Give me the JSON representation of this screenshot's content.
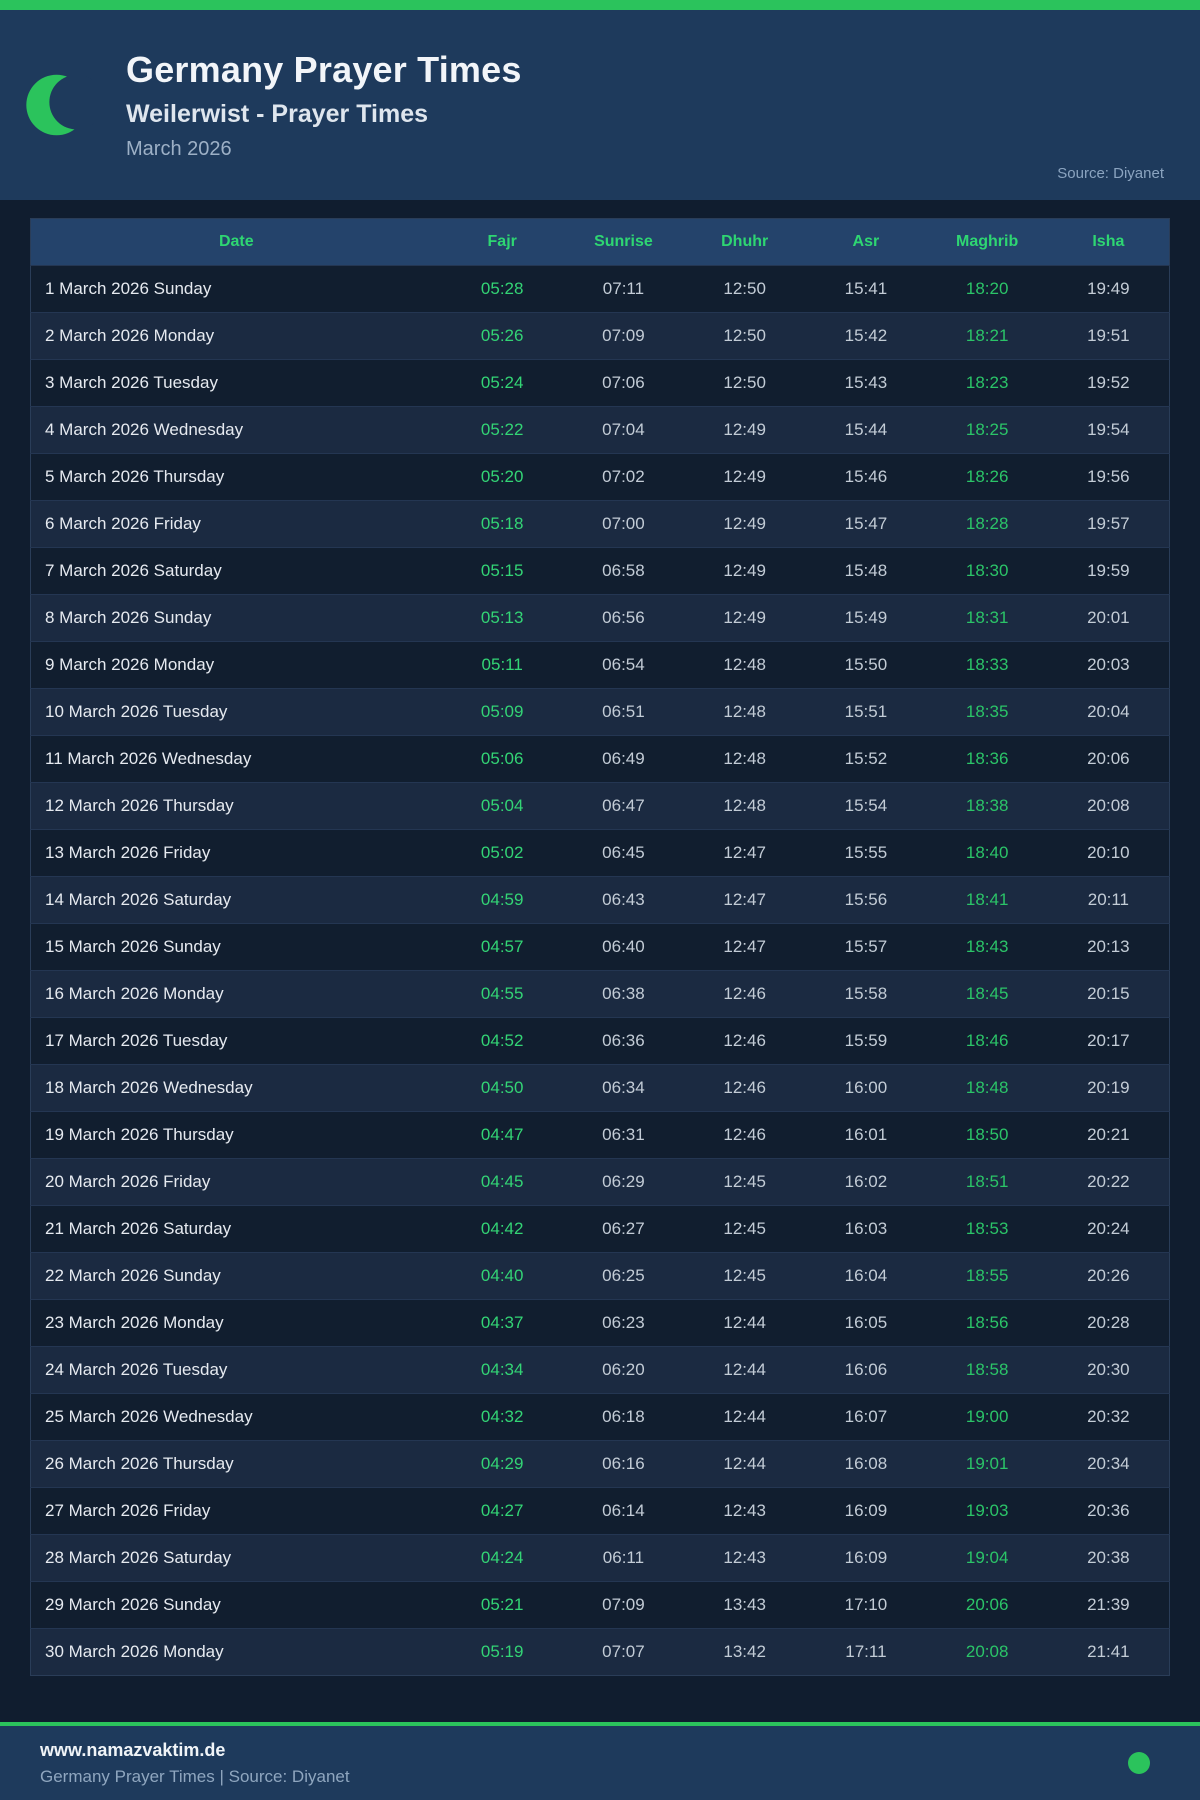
{
  "colors": {
    "accent-green": "#2bc35c",
    "green-text": "#2ed672",
    "fajr-green": "#33d475",
    "maghrib-green": "#2bc468",
    "header-bg": "#1e3a5c",
    "page-bg": "#101d2f",
    "table-header-bg": "#24436b",
    "row-odd": "#111e2f",
    "row-even": "#1b2a41",
    "footer-bg": "#1e3a5c"
  },
  "header": {
    "title": "Germany Prayer Times",
    "subtitle": "Weilerwist - Prayer Times",
    "month": "March 2026",
    "source": "Source: Diyanet"
  },
  "table": {
    "columns": [
      "Date",
      "Fajr",
      "Sunrise",
      "Dhuhr",
      "Asr",
      "Maghrib",
      "Isha"
    ],
    "rows": [
      {
        "date": "1 March 2026 Sunday",
        "fajr": "05:28",
        "sunrise": "07:11",
        "dhuhr": "12:50",
        "asr": "15:41",
        "maghrib": "18:20",
        "isha": "19:49"
      },
      {
        "date": "2 March 2026 Monday",
        "fajr": "05:26",
        "sunrise": "07:09",
        "dhuhr": "12:50",
        "asr": "15:42",
        "maghrib": "18:21",
        "isha": "19:51"
      },
      {
        "date": "3 March 2026 Tuesday",
        "fajr": "05:24",
        "sunrise": "07:06",
        "dhuhr": "12:50",
        "asr": "15:43",
        "maghrib": "18:23",
        "isha": "19:52"
      },
      {
        "date": "4 March 2026 Wednesday",
        "fajr": "05:22",
        "sunrise": "07:04",
        "dhuhr": "12:49",
        "asr": "15:44",
        "maghrib": "18:25",
        "isha": "19:54"
      },
      {
        "date": "5 March 2026 Thursday",
        "fajr": "05:20",
        "sunrise": "07:02",
        "dhuhr": "12:49",
        "asr": "15:46",
        "maghrib": "18:26",
        "isha": "19:56"
      },
      {
        "date": "6 March 2026 Friday",
        "fajr": "05:18",
        "sunrise": "07:00",
        "dhuhr": "12:49",
        "asr": "15:47",
        "maghrib": "18:28",
        "isha": "19:57"
      },
      {
        "date": "7 March 2026 Saturday",
        "fajr": "05:15",
        "sunrise": "06:58",
        "dhuhr": "12:49",
        "asr": "15:48",
        "maghrib": "18:30",
        "isha": "19:59"
      },
      {
        "date": "8 March 2026 Sunday",
        "fajr": "05:13",
        "sunrise": "06:56",
        "dhuhr": "12:49",
        "asr": "15:49",
        "maghrib": "18:31",
        "isha": "20:01"
      },
      {
        "date": "9 March 2026 Monday",
        "fajr": "05:11",
        "sunrise": "06:54",
        "dhuhr": "12:48",
        "asr": "15:50",
        "maghrib": "18:33",
        "isha": "20:03"
      },
      {
        "date": "10 March 2026 Tuesday",
        "fajr": "05:09",
        "sunrise": "06:51",
        "dhuhr": "12:48",
        "asr": "15:51",
        "maghrib": "18:35",
        "isha": "20:04"
      },
      {
        "date": "11 March 2026 Wednesday",
        "fajr": "05:06",
        "sunrise": "06:49",
        "dhuhr": "12:48",
        "asr": "15:52",
        "maghrib": "18:36",
        "isha": "20:06"
      },
      {
        "date": "12 March 2026 Thursday",
        "fajr": "05:04",
        "sunrise": "06:47",
        "dhuhr": "12:48",
        "asr": "15:54",
        "maghrib": "18:38",
        "isha": "20:08"
      },
      {
        "date": "13 March 2026 Friday",
        "fajr": "05:02",
        "sunrise": "06:45",
        "dhuhr": "12:47",
        "asr": "15:55",
        "maghrib": "18:40",
        "isha": "20:10"
      },
      {
        "date": "14 March 2026 Saturday",
        "fajr": "04:59",
        "sunrise": "06:43",
        "dhuhr": "12:47",
        "asr": "15:56",
        "maghrib": "18:41",
        "isha": "20:11"
      },
      {
        "date": "15 March 2026 Sunday",
        "fajr": "04:57",
        "sunrise": "06:40",
        "dhuhr": "12:47",
        "asr": "15:57",
        "maghrib": "18:43",
        "isha": "20:13"
      },
      {
        "date": "16 March 2026 Monday",
        "fajr": "04:55",
        "sunrise": "06:38",
        "dhuhr": "12:46",
        "asr": "15:58",
        "maghrib": "18:45",
        "isha": "20:15"
      },
      {
        "date": "17 March 2026 Tuesday",
        "fajr": "04:52",
        "sunrise": "06:36",
        "dhuhr": "12:46",
        "asr": "15:59",
        "maghrib": "18:46",
        "isha": "20:17"
      },
      {
        "date": "18 March 2026 Wednesday",
        "fajr": "04:50",
        "sunrise": "06:34",
        "dhuhr": "12:46",
        "asr": "16:00",
        "maghrib": "18:48",
        "isha": "20:19"
      },
      {
        "date": "19 March 2026 Thursday",
        "fajr": "04:47",
        "sunrise": "06:31",
        "dhuhr": "12:46",
        "asr": "16:01",
        "maghrib": "18:50",
        "isha": "20:21"
      },
      {
        "date": "20 March 2026 Friday",
        "fajr": "04:45",
        "sunrise": "06:29",
        "dhuhr": "12:45",
        "asr": "16:02",
        "maghrib": "18:51",
        "isha": "20:22"
      },
      {
        "date": "21 March 2026 Saturday",
        "fajr": "04:42",
        "sunrise": "06:27",
        "dhuhr": "12:45",
        "asr": "16:03",
        "maghrib": "18:53",
        "isha": "20:24"
      },
      {
        "date": "22 March 2026 Sunday",
        "fajr": "04:40",
        "sunrise": "06:25",
        "dhuhr": "12:45",
        "asr": "16:04",
        "maghrib": "18:55",
        "isha": "20:26"
      },
      {
        "date": "23 March 2026 Monday",
        "fajr": "04:37",
        "sunrise": "06:23",
        "dhuhr": "12:44",
        "asr": "16:05",
        "maghrib": "18:56",
        "isha": "20:28"
      },
      {
        "date": "24 March 2026 Tuesday",
        "fajr": "04:34",
        "sunrise": "06:20",
        "dhuhr": "12:44",
        "asr": "16:06",
        "maghrib": "18:58",
        "isha": "20:30"
      },
      {
        "date": "25 March 2026 Wednesday",
        "fajr": "04:32",
        "sunrise": "06:18",
        "dhuhr": "12:44",
        "asr": "16:07",
        "maghrib": "19:00",
        "isha": "20:32"
      },
      {
        "date": "26 March 2026 Thursday",
        "fajr": "04:29",
        "sunrise": "06:16",
        "dhuhr": "12:44",
        "asr": "16:08",
        "maghrib": "19:01",
        "isha": "20:34"
      },
      {
        "date": "27 March 2026 Friday",
        "fajr": "04:27",
        "sunrise": "06:14",
        "dhuhr": "12:43",
        "asr": "16:09",
        "maghrib": "19:03",
        "isha": "20:36"
      },
      {
        "date": "28 March 2026 Saturday",
        "fajr": "04:24",
        "sunrise": "06:11",
        "dhuhr": "12:43",
        "asr": "16:09",
        "maghrib": "19:04",
        "isha": "20:38"
      },
      {
        "date": "29 March 2026 Sunday",
        "fajr": "05:21",
        "sunrise": "07:09",
        "dhuhr": "13:43",
        "asr": "17:10",
        "maghrib": "20:06",
        "isha": "21:39"
      },
      {
        "date": "30 March 2026 Monday",
        "fajr": "05:19",
        "sunrise": "07:07",
        "dhuhr": "13:42",
        "asr": "17:11",
        "maghrib": "20:08",
        "isha": "21:41"
      }
    ]
  },
  "footer": {
    "website": "www.namazvaktim.de",
    "tagline": "Germany Prayer Times | Source: Diyanet"
  }
}
